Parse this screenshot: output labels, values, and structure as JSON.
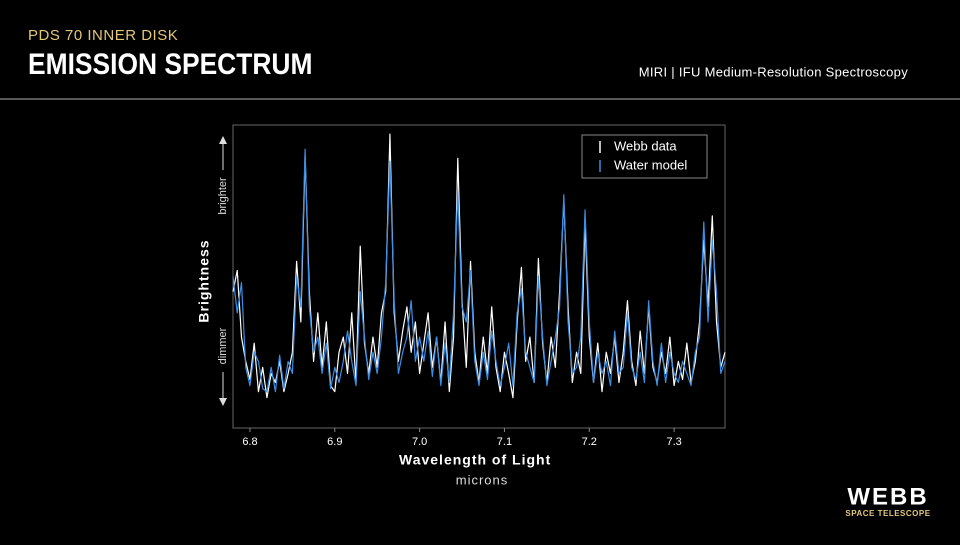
{
  "header": {
    "kicker": "PDS 70 INNER DISK",
    "title": "EMISSION SPECTRUM",
    "subtitle": "MIRI | IFU Medium-Resolution Spectroscopy"
  },
  "logo": {
    "name": "WEBB",
    "tagline": "SPACE TELESCOPE"
  },
  "chart_data": {
    "type": "line",
    "x_label": "Wavelength of Light",
    "x_unit": "microns",
    "y_label": "Brightness",
    "y_high": "brighter",
    "y_low": "dimmer",
    "xlim": [
      6.78,
      7.36
    ],
    "ylim": [
      0,
      1
    ],
    "xticks": [
      6.8,
      6.9,
      {
        "value": 7,
        "label": "7.0"
      },
      7.1,
      7.2,
      7.3
    ],
    "legend": "upper right",
    "x": [
      6.78,
      6.785,
      6.79,
      6.795,
      6.8,
      6.805,
      6.81,
      6.815,
      6.82,
      6.825,
      6.83,
      6.835,
      6.84,
      6.845,
      6.85,
      6.855,
      6.86,
      6.865,
      6.87,
      6.875,
      6.88,
      6.885,
      6.89,
      6.895,
      6.9,
      6.905,
      6.91,
      6.915,
      6.92,
      6.925,
      6.93,
      6.935,
      6.94,
      6.945,
      6.95,
      6.955,
      6.96,
      6.965,
      6.97,
      6.975,
      6.98,
      6.985,
      6.99,
      6.995,
      7,
      7.005,
      7.01,
      7.015,
      7.02,
      7.025,
      7.03,
      7.035,
      7.04,
      7.045,
      7.05,
      7.055,
      7.06,
      7.065,
      7.07,
      7.075,
      7.08,
      7.085,
      7.09,
      7.095,
      7.1,
      7.105,
      7.11,
      7.115,
      7.12,
      7.125,
      7.13,
      7.135,
      7.14,
      7.145,
      7.15,
      7.155,
      7.16,
      7.165,
      7.17,
      7.175,
      7.18,
      7.185,
      7.19,
      7.195,
      7.2,
      7.205,
      7.21,
      7.215,
      7.22,
      7.225,
      7.23,
      7.235,
      7.24,
      7.245,
      7.25,
      7.255,
      7.26,
      7.265,
      7.27,
      7.275,
      7.28,
      7.285,
      7.29,
      7.295,
      7.3,
      7.305,
      7.31,
      7.315,
      7.32,
      7.325,
      7.33,
      7.335,
      7.34,
      7.345,
      7.35,
      7.355,
      7.36
    ],
    "series": [
      {
        "name": "Webb data",
        "color": "#ffffff",
        "values": [
          0.45,
          0.52,
          0.3,
          0.22,
          0.16,
          0.28,
          0.12,
          0.2,
          0.1,
          0.18,
          0.15,
          0.22,
          0.12,
          0.18,
          0.25,
          0.55,
          0.35,
          0.9,
          0.45,
          0.22,
          0.38,
          0.2,
          0.35,
          0.14,
          0.12,
          0.25,
          0.3,
          0.18,
          0.38,
          0.15,
          0.6,
          0.28,
          0.18,
          0.3,
          0.2,
          0.38,
          0.45,
          0.97,
          0.38,
          0.22,
          0.32,
          0.4,
          0.25,
          0.35,
          0.18,
          0.28,
          0.38,
          0.2,
          0.3,
          0.15,
          0.35,
          0.12,
          0.3,
          0.89,
          0.42,
          0.2,
          0.55,
          0.25,
          0.15,
          0.3,
          0.18,
          0.4,
          0.2,
          0.12,
          0.25,
          0.18,
          0.1,
          0.35,
          0.53,
          0.22,
          0.3,
          0.15,
          0.56,
          0.28,
          0.15,
          0.3,
          0.2,
          0.45,
          0.75,
          0.4,
          0.15,
          0.25,
          0.18,
          0.68,
          0.3,
          0.15,
          0.28,
          0.12,
          0.25,
          0.18,
          0.3,
          0.15,
          0.25,
          0.42,
          0.22,
          0.14,
          0.32,
          0.18,
          0.4,
          0.2,
          0.15,
          0.25,
          0.18,
          0.3,
          0.14,
          0.22,
          0.16,
          0.28,
          0.15,
          0.22,
          0.35,
          0.62,
          0.4,
          0.7,
          0.35,
          0.2,
          0.25
        ]
      },
      {
        "name": "Water model",
        "color": "#3a8ee6",
        "values": [
          0.5,
          0.38,
          0.48,
          0.2,
          0.14,
          0.25,
          0.22,
          0.13,
          0.12,
          0.2,
          0.12,
          0.24,
          0.13,
          0.22,
          0.18,
          0.5,
          0.4,
          0.92,
          0.4,
          0.25,
          0.3,
          0.18,
          0.28,
          0.13,
          0.2,
          0.15,
          0.22,
          0.32,
          0.22,
          0.14,
          0.45,
          0.3,
          0.16,
          0.25,
          0.18,
          0.3,
          0.48,
          0.88,
          0.42,
          0.18,
          0.25,
          0.3,
          0.42,
          0.22,
          0.3,
          0.22,
          0.32,
          0.17,
          0.3,
          0.14,
          0.28,
          0.15,
          0.38,
          0.78,
          0.4,
          0.35,
          0.52,
          0.22,
          0.14,
          0.25,
          0.16,
          0.32,
          0.22,
          0.14,
          0.2,
          0.28,
          0.14,
          0.38,
          0.46,
          0.25,
          0.2,
          0.15,
          0.5,
          0.3,
          0.14,
          0.22,
          0.3,
          0.4,
          0.77,
          0.35,
          0.18,
          0.2,
          0.3,
          0.72,
          0.35,
          0.15,
          0.25,
          0.18,
          0.22,
          0.14,
          0.32,
          0.18,
          0.2,
          0.38,
          0.2,
          0.16,
          0.25,
          0.15,
          0.42,
          0.22,
          0.14,
          0.28,
          0.15,
          0.25,
          0.18,
          0.15,
          0.22,
          0.18,
          0.14,
          0.25,
          0.3,
          0.68,
          0.35,
          0.62,
          0.45,
          0.18,
          0.22
        ]
      }
    ]
  }
}
